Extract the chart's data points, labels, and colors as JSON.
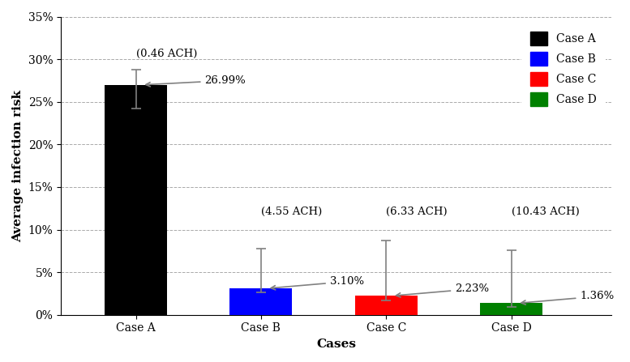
{
  "categories": [
    "Case A",
    "Case B",
    "Case C",
    "Case D"
  ],
  "values": [
    26.99,
    3.1,
    2.23,
    1.36
  ],
  "errors_upper": [
    1.8,
    4.7,
    6.5,
    6.2
  ],
  "errors_lower": [
    2.8,
    0.5,
    0.5,
    0.4
  ],
  "bar_colors": [
    "#000000",
    "#0000ff",
    "#ff0000",
    "#008000"
  ],
  "ach_labels": [
    "(0.46 ACH)",
    "(4.55 ACH)",
    "(6.33 ACH)",
    "(10.43 ACH)"
  ],
  "value_labels": [
    "26.99%",
    "3.10%",
    "2.23%",
    "1.36%"
  ],
  "ylabel": "Average infection risk",
  "xlabel": "Cases",
  "ylim": [
    0,
    35
  ],
  "yticks": [
    0,
    5,
    10,
    15,
    20,
    25,
    30,
    35
  ],
  "ytick_labels": [
    "0%",
    "5%",
    "10%",
    "15%",
    "20%",
    "25%",
    "30%",
    "35%"
  ],
  "legend_labels": [
    "Case A",
    "Case B",
    "Case C",
    "Case D"
  ],
  "legend_colors": [
    "#000000",
    "#0000ff",
    "#ff0000",
    "#008000"
  ],
  "bar_width": 0.5,
  "title": ""
}
